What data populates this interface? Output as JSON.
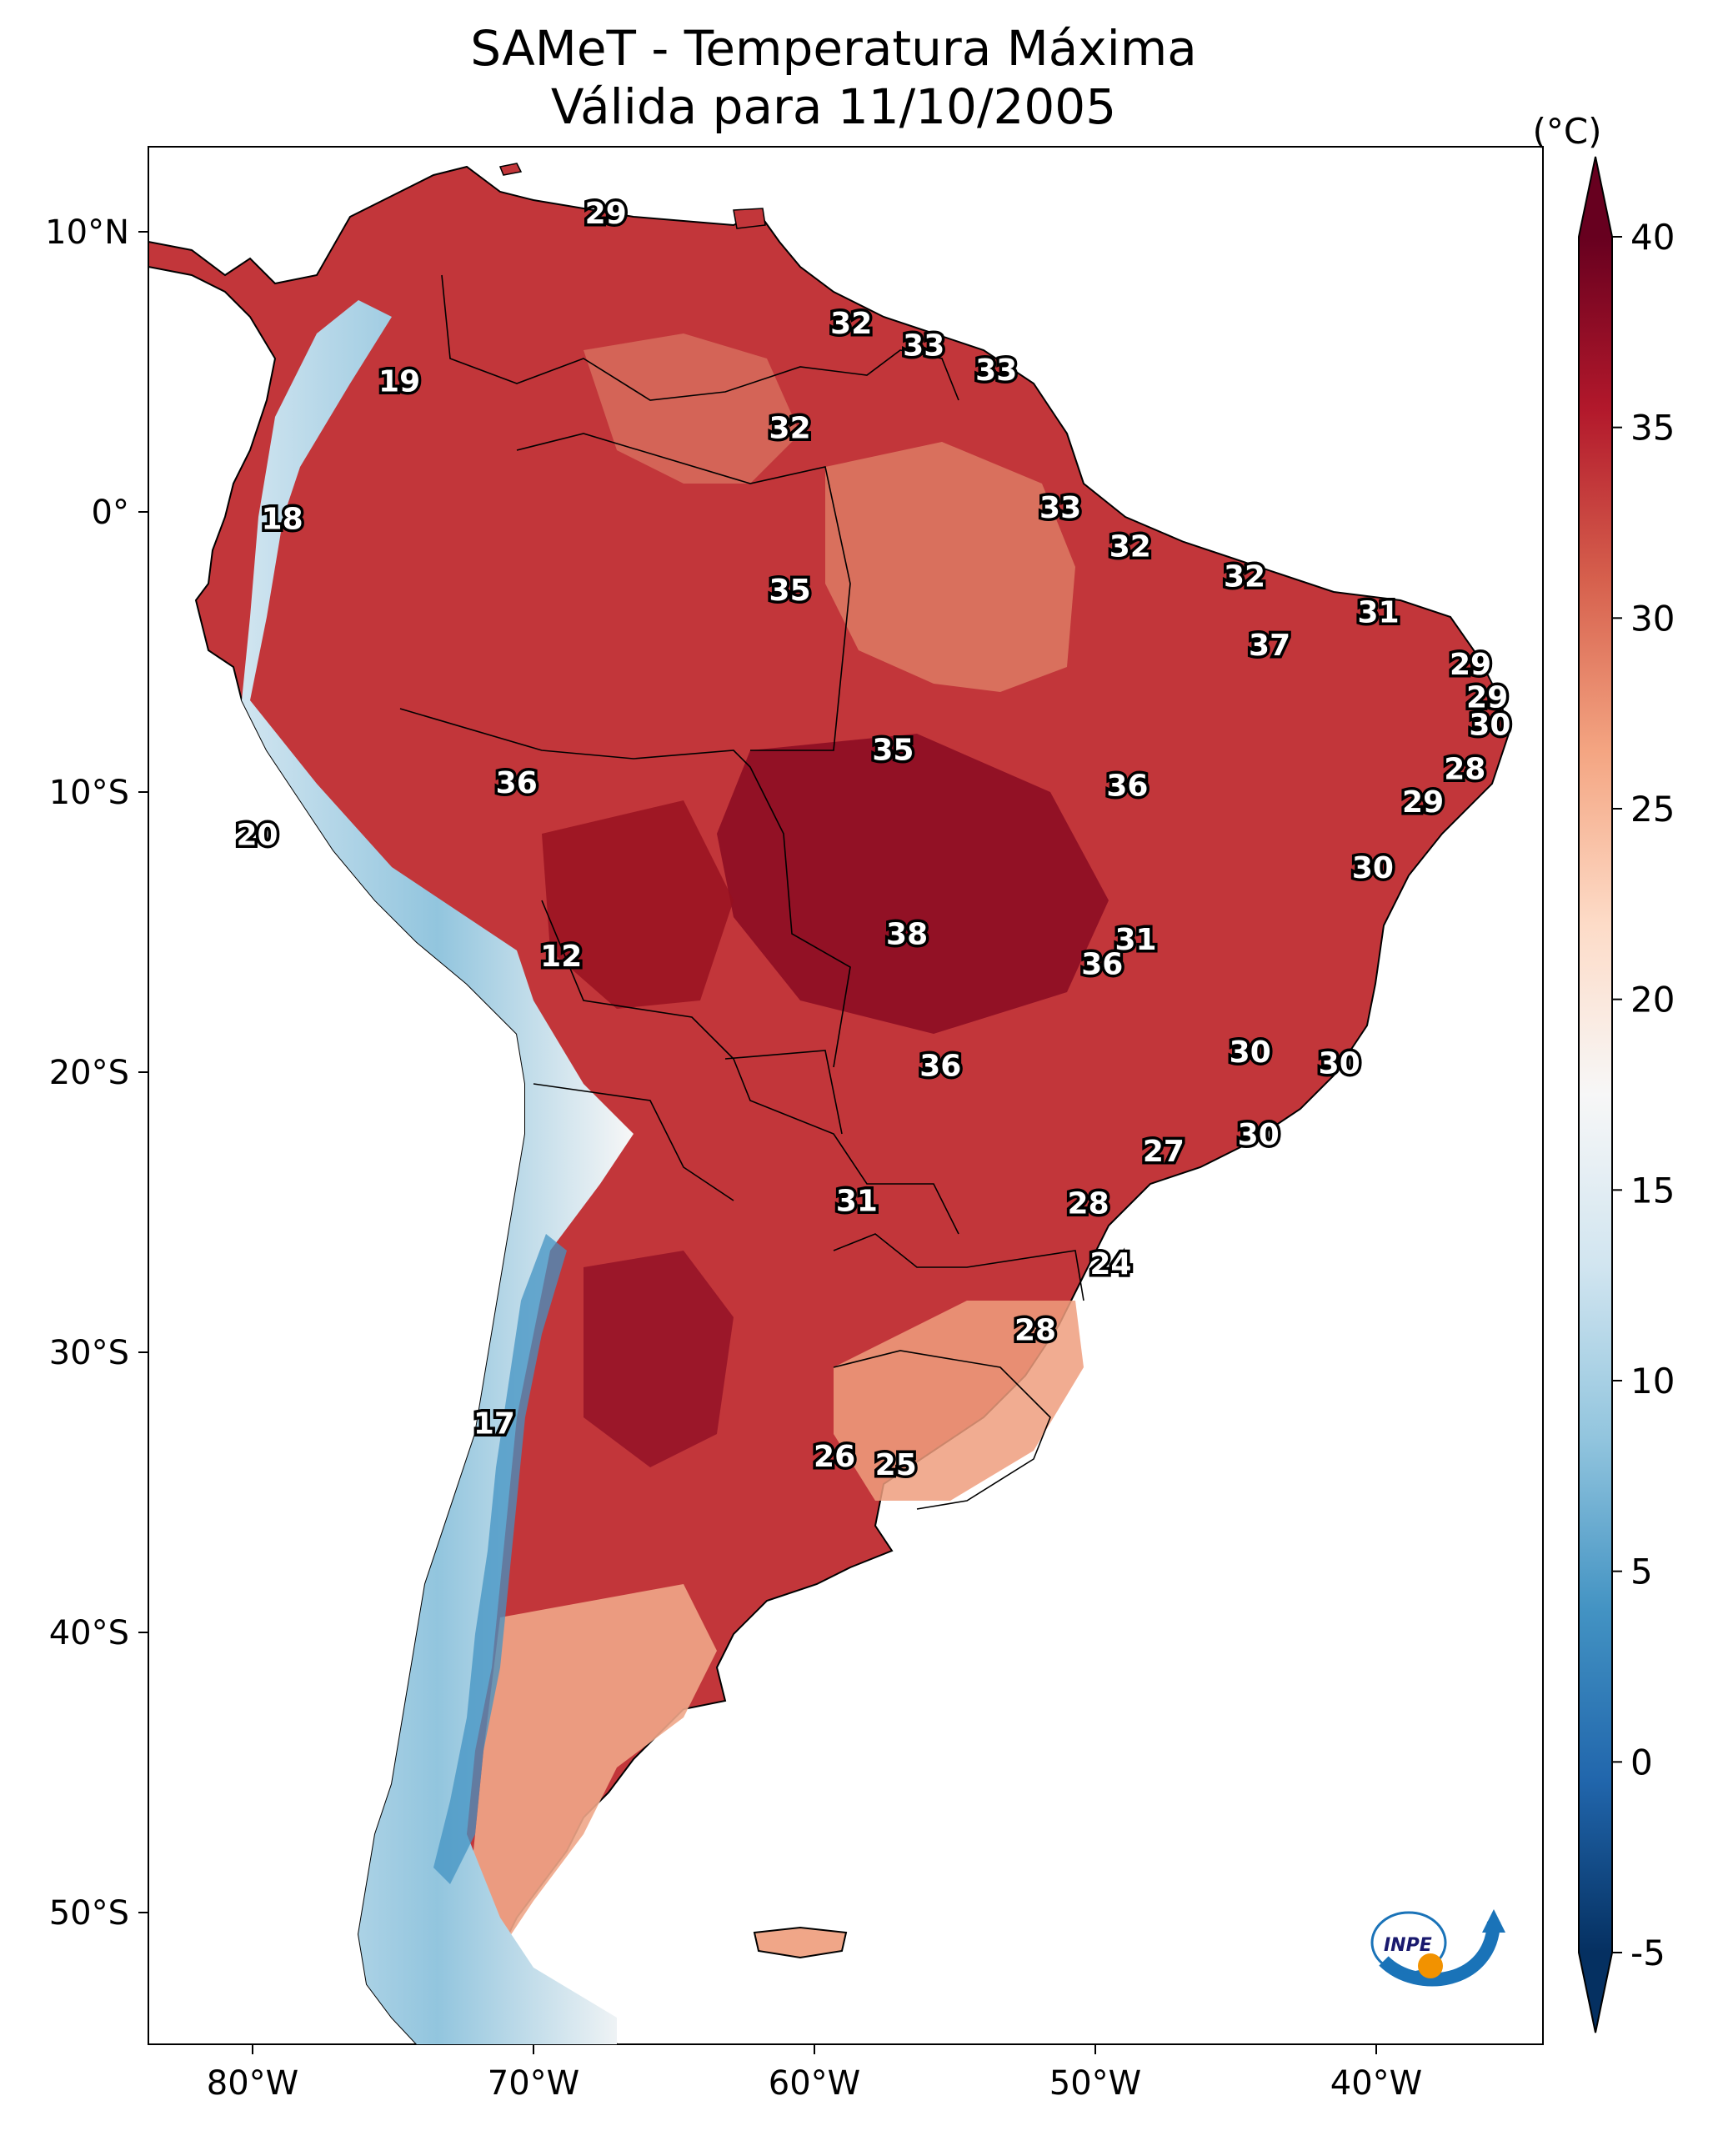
{
  "title": {
    "line1": "SAMeT - Temperatura Máxima",
    "line2": "Válida para 11/10/2005"
  },
  "map": {
    "region": "South America",
    "variable": "Maximum temperature",
    "lon_range": [
      -83,
      -33
    ],
    "lat_range": [
      -56,
      13
    ],
    "lon_ticks": [
      {
        "value": -80,
        "label": "80°W"
      },
      {
        "value": -70,
        "label": "70°W"
      },
      {
        "value": -60,
        "label": "60°W"
      },
      {
        "value": -50,
        "label": "50°W"
      },
      {
        "value": -40,
        "label": "40°W"
      }
    ],
    "lat_ticks": [
      {
        "value": 10,
        "label": "10°N"
      },
      {
        "value": 0,
        "label": "0°"
      },
      {
        "value": -10,
        "label": "10°S"
      },
      {
        "value": -20,
        "label": "20°S"
      },
      {
        "value": -30,
        "label": "30°S"
      },
      {
        "value": -40,
        "label": "40°S"
      },
      {
        "value": -50,
        "label": "50°S"
      }
    ],
    "station_values": [
      {
        "value": "29",
        "lon": -66.6,
        "lat": 10.6
      },
      {
        "value": "32",
        "lon": -57.8,
        "lat": 6.6
      },
      {
        "value": "33",
        "lon": -55.2,
        "lat": 5.8
      },
      {
        "value": "33",
        "lon": -52.6,
        "lat": 4.9
      },
      {
        "value": "19",
        "lon": -74.0,
        "lat": 4.5
      },
      {
        "value": "32",
        "lon": -60.0,
        "lat": 2.8
      },
      {
        "value": "33",
        "lon": -50.3,
        "lat": -0.1
      },
      {
        "value": "18",
        "lon": -78.2,
        "lat": -0.5
      },
      {
        "value": "32",
        "lon": -47.8,
        "lat": -1.5
      },
      {
        "value": "32",
        "lon": -43.7,
        "lat": -2.6
      },
      {
        "value": "35",
        "lon": -60.0,
        "lat": -3.1
      },
      {
        "value": "31",
        "lon": -38.9,
        "lat": -3.9
      },
      {
        "value": "37",
        "lon": -42.8,
        "lat": -5.1
      },
      {
        "value": "29",
        "lon": -35.6,
        "lat": -5.8
      },
      {
        "value": "29",
        "lon": -35.0,
        "lat": -7.0
      },
      {
        "value": "30",
        "lon": -34.9,
        "lat": -8.0
      },
      {
        "value": "35",
        "lon": -56.3,
        "lat": -8.9
      },
      {
        "value": "28",
        "lon": -35.8,
        "lat": -9.6
      },
      {
        "value": "36",
        "lon": -69.8,
        "lat": -10.1
      },
      {
        "value": "36",
        "lon": -47.9,
        "lat": -10.2
      },
      {
        "value": "29",
        "lon": -37.3,
        "lat": -10.8
      },
      {
        "value": "20",
        "lon": -79.1,
        "lat": -12.0
      },
      {
        "value": "30",
        "lon": -39.1,
        "lat": -13.2
      },
      {
        "value": "38",
        "lon": -55.8,
        "lat": -15.6
      },
      {
        "value": "31",
        "lon": -47.6,
        "lat": -15.8
      },
      {
        "value": "36",
        "lon": -48.8,
        "lat": -16.7
      },
      {
        "value": "12",
        "lon": -68.2,
        "lat": -16.4
      },
      {
        "value": "30",
        "lon": -43.5,
        "lat": -19.9
      },
      {
        "value": "30",
        "lon": -40.3,
        "lat": -20.3
      },
      {
        "value": "36",
        "lon": -54.6,
        "lat": -20.4
      },
      {
        "value": "30",
        "lon": -43.2,
        "lat": -22.9
      },
      {
        "value": "27",
        "lon": -46.6,
        "lat": -23.5
      },
      {
        "value": "31",
        "lon": -57.6,
        "lat": -25.3
      },
      {
        "value": "28",
        "lon": -49.3,
        "lat": -25.4
      },
      {
        "value": "24",
        "lon": -48.5,
        "lat": -27.6
      },
      {
        "value": "28",
        "lon": -51.2,
        "lat": -30.0
      },
      {
        "value": "17",
        "lon": -70.6,
        "lat": -33.4
      },
      {
        "value": "26",
        "lon": -58.4,
        "lat": -34.6
      },
      {
        "value": "25",
        "lon": -56.2,
        "lat": -34.9
      }
    ]
  },
  "colorbar": {
    "unit": "(°C)",
    "vmin": -5,
    "vmax": 40,
    "ticks": [
      {
        "value": 40,
        "label": "40"
      },
      {
        "value": 35,
        "label": "35"
      },
      {
        "value": 30,
        "label": "30"
      },
      {
        "value": 25,
        "label": "25"
      },
      {
        "value": 20,
        "label": "20"
      },
      {
        "value": 15,
        "label": "15"
      },
      {
        "value": 10,
        "label": "10"
      },
      {
        "value": 5,
        "label": "5"
      },
      {
        "value": 0,
        "label": "0"
      },
      {
        "value": -5,
        "label": "-5"
      }
    ],
    "colors": [
      "#053061",
      "#2166ac",
      "#4393c3",
      "#92c5de",
      "#d1e5f0",
      "#f7f7f7",
      "#fddbc7",
      "#f4a582",
      "#d6604d",
      "#b2182b",
      "#67001f"
    ]
  },
  "logo": {
    "text": "INPE"
  }
}
